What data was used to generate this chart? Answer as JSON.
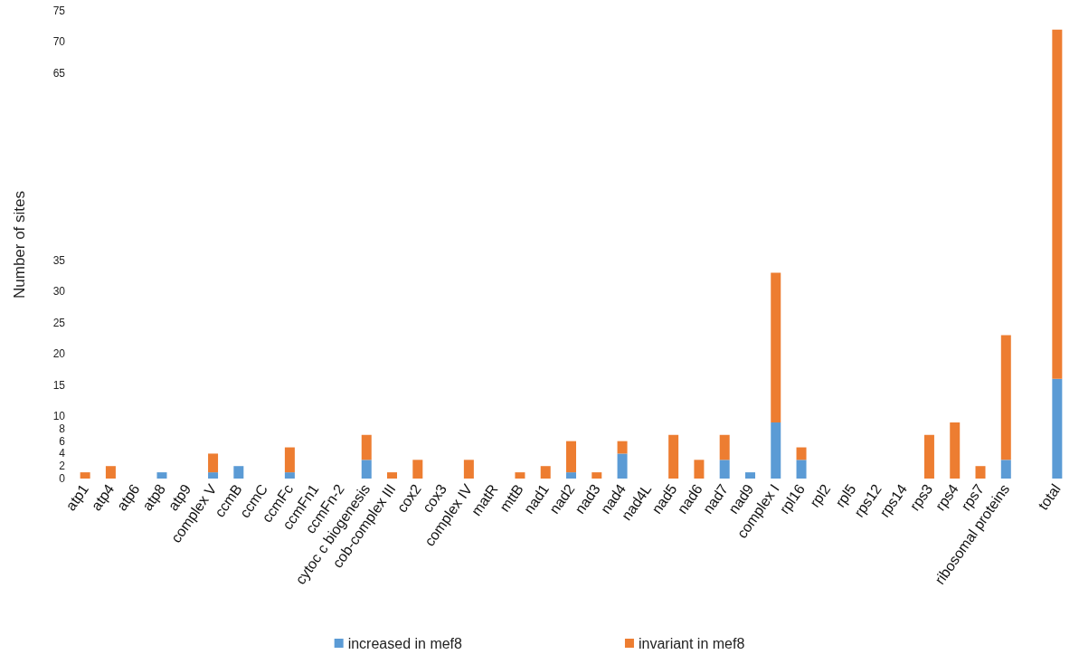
{
  "chart_data": {
    "type": "bar",
    "stacked": true,
    "ylabel": "Number of sites",
    "categories": [
      "atp1",
      "atp4",
      "atp6",
      "atp8",
      "atp9",
      "complex V",
      "ccmB",
      "ccmC",
      "ccmFc",
      "ccmFn1",
      "ccmFn-2",
      "cytoc c biogenesis",
      "cob-complex III",
      "cox2",
      "cox3",
      "complex IV",
      "matR",
      "mttB",
      "nad1",
      "nad2",
      "nad3",
      "nad4",
      "nad4L",
      "nad5",
      "nad6",
      "nad7",
      "nad9",
      "complex I",
      "rpl16",
      "rpl2",
      "rpl5",
      "rps12",
      "rps14",
      "rps3",
      "rps4",
      "rps7",
      "ribosomal proteins",
      null,
      "total"
    ],
    "series": [
      {
        "name": "increased in mef8",
        "color": "#5b9bd5",
        "values": [
          0,
          0,
          0,
          1,
          0,
          1,
          2,
          0,
          1,
          0,
          0,
          3,
          0,
          0,
          0,
          0,
          0,
          0,
          0,
          1,
          0,
          4,
          0,
          0,
          0,
          3,
          1,
          9,
          3,
          0,
          0,
          0,
          0,
          0,
          0,
          0,
          3,
          null,
          16
        ]
      },
      {
        "name": "invariant in mef8",
        "color": "#ed7d31",
        "values": [
          1,
          2,
          0,
          0,
          0,
          3,
          0,
          0,
          4,
          0,
          0,
          4,
          1,
          3,
          0,
          3,
          0,
          1,
          2,
          5,
          1,
          2,
          0,
          7,
          3,
          4,
          0,
          24,
          2,
          0,
          0,
          0,
          0,
          7,
          9,
          2,
          20,
          null,
          56
        ]
      }
    ],
    "ylim": [
      0,
      75
    ],
    "yticks": [
      0,
      2,
      4,
      6,
      8,
      10,
      15,
      20,
      25,
      30,
      35,
      65,
      70,
      75
    ],
    "grid": false,
    "legend": "bottom"
  }
}
